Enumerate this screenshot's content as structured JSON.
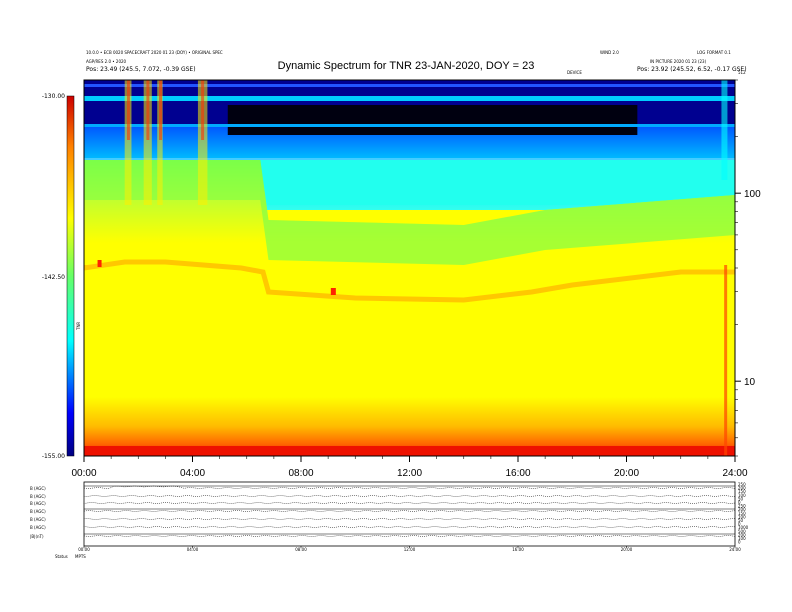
{
  "chart_data": {
    "type": "heatmap",
    "title": "Dynamic Spectrum for TNR 23-JAN-2020, DOY = 23",
    "header_left": [
      "10.0.0 • ECB 0020 SPACECRAFT 2020 01 23 (DOY) • ORIGINAL SPEC",
      "AGP/RES 2.0 • 2020",
      "Pos:  23.49 (245.5, 7.072, -0.39 GSE)"
    ],
    "header_right": [
      "WIND 2.0",
      "LOG FORMAT 0.1",
      "IN PICTURE 2020 01 23 (23)",
      "Pos:  23.92 (245.52, 6.52, -0.17 GSE)"
    ],
    "header_center_small": "DEVICE",
    "header_corner": "512",
    "x_axis": {
      "ticks": [
        "00:00",
        "04:00",
        "08:00",
        "12:00",
        "16:00",
        "20:00",
        "24:00"
      ],
      "range_hours": [
        0,
        24
      ]
    },
    "y_axis_right": {
      "scale": "log",
      "ticks": [
        "100",
        "10"
      ],
      "range": [
        4,
        400
      ]
    },
    "colorbar": {
      "label": "TNR",
      "ticks": [
        "-130.00",
        "-142.50",
        "-155.00"
      ],
      "range": [
        -155.0,
        -130.0
      ]
    },
    "features": {
      "lower_band_top_hour_profile": [
        [
          0,
          160
        ],
        [
          6.5,
          160
        ],
        [
          6.8,
          220
        ],
        [
          14,
          225
        ],
        [
          17,
          210
        ],
        [
          24,
          195
        ]
      ]
    },
    "bottom_panel": {
      "left_labels": [
        "B (AGC)",
        "B (AGC)",
        "B (AGC)",
        "B (AGC)",
        "B (AGC)",
        "B (AGC)",
        "|B|(nT)"
      ],
      "right_labels": [
        "250",
        "200",
        "150",
        "100",
        "50",
        "0",
        "250",
        "200",
        "150",
        "100",
        "50",
        "0",
        "1000",
        "500",
        "200",
        "100",
        "0"
      ],
      "x_ticks": [
        "00:00",
        "04:00",
        "08:00",
        "12:00",
        "16:00",
        "20:00",
        "24:00"
      ],
      "footer": [
        "Status",
        "MPTS"
      ]
    }
  }
}
